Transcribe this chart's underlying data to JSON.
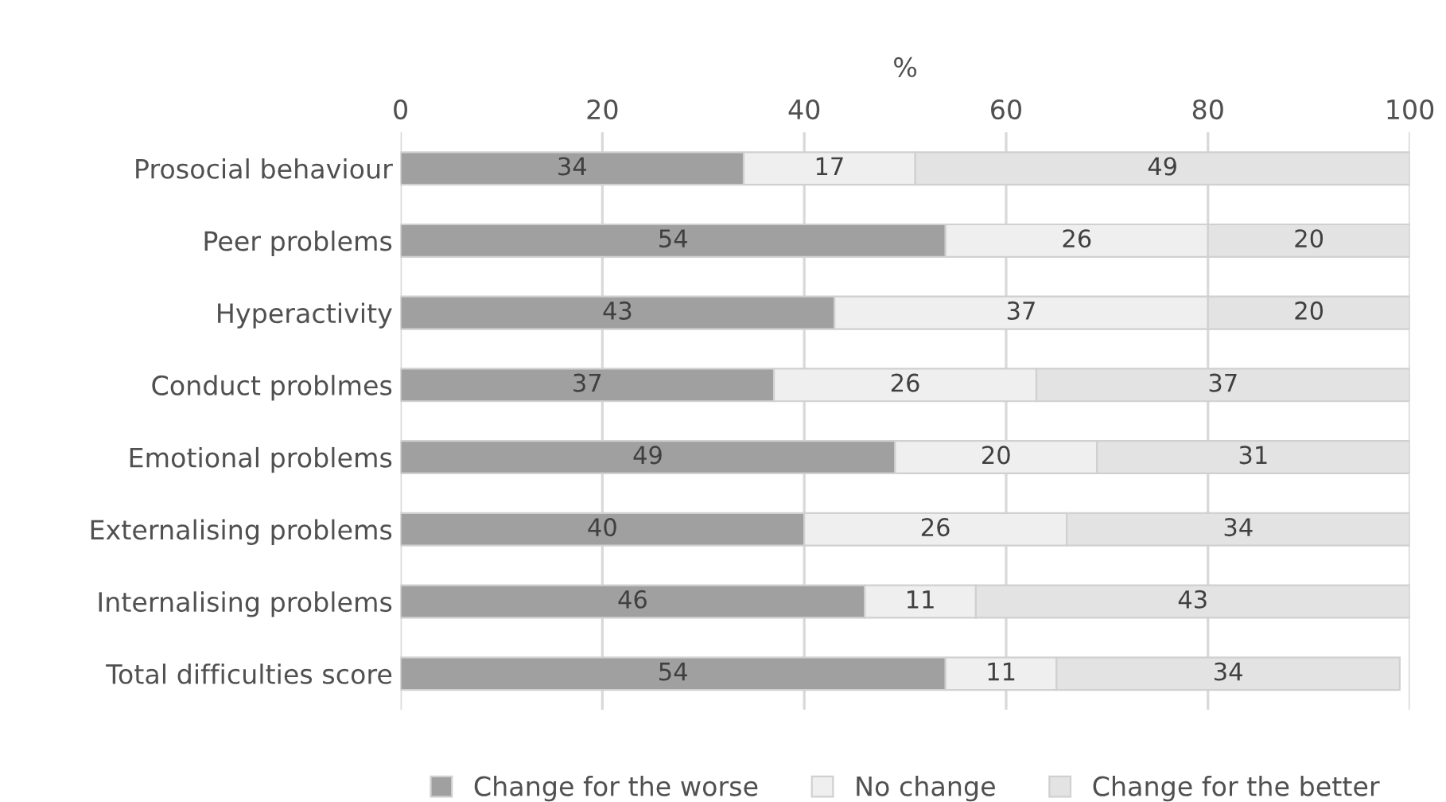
{
  "chart_data": {
    "type": "bar",
    "orientation": "horizontal",
    "stacked": true,
    "xlabel": "%",
    "categories": [
      "Prosocial behaviour",
      "Peer problems",
      "Hyperactivity",
      "Conduct problmes",
      "Emotional problems",
      "Externalising problems",
      "Internalising problems",
      "Total difficulties score"
    ],
    "series": [
      {
        "name": "Change for the worse",
        "color": "#a0a0a0",
        "values": [
          34,
          54,
          43,
          37,
          49,
          40,
          46,
          54
        ]
      },
      {
        "name": "No change",
        "color": "#efefef",
        "values": [
          17,
          26,
          37,
          26,
          20,
          26,
          11,
          11
        ]
      },
      {
        "name": "Change for the better",
        "color": "#e3e3e3",
        "values": [
          49,
          20,
          20,
          37,
          31,
          34,
          43,
          34
        ]
      }
    ],
    "xlim": [
      0,
      100
    ],
    "xticks": [
      0,
      20,
      40,
      60,
      80,
      100
    ],
    "grid": "x",
    "legend": "bottom",
    "data_labels": true
  }
}
